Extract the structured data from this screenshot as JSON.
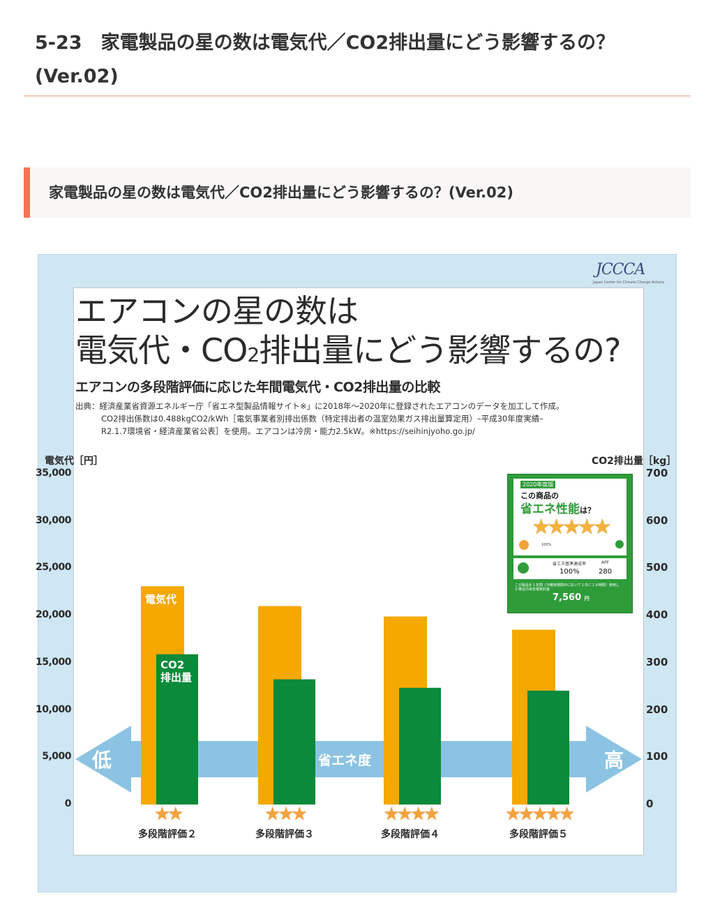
{
  "page": {
    "title_line1": "5-23　家電製品の星の数は電気代／CO2排出量にどう影響するの？",
    "title_line2": "(Ver.02)",
    "section_heading": "家電製品の星の数は電気代／CO2排出量にどう影響するの？(Ver.02)"
  },
  "logo": {
    "text": "JCCCA",
    "sub": "Japan Center for Climate Change Actions"
  },
  "infographic": {
    "title_line1": "エアコンの星の数は",
    "title_line2_a": "電気代・CO",
    "title_line2_sub": "2",
    "title_line2_b": "排出量にどう影響するの?",
    "subtitle": "エアコンの多段階評価に応じた年間電気代・CO2排出量の比較",
    "source_line1": "出典：経済産業省資源エネルギー庁「省エネ型製品情報サイト※」に2018年〜2020年に登録されたエアコンのデータを加工して作成。",
    "source_line2": "CO2排出係数は0.488kgCO2/kWh［電気事業者別排出係数（特定排出者の温室効果ガス排出量算定用）–平成30年度実績–",
    "source_line3": "R2.1.7環境省・経済産業省公表］を使用。エアコンは冷房・能力2.5kW。※https://seihinjyoho.go.jp/"
  },
  "chart_data": {
    "type": "bar",
    "categories": [
      "多段階評価２",
      "多段階評価３",
      "多段階評価４",
      "多段階評価５"
    ],
    "stars": [
      "★★",
      "★★★",
      "★★★★",
      "★★★★★"
    ],
    "star_counts": [
      2,
      3,
      4,
      5
    ],
    "series": [
      {
        "name": "電気代",
        "axis": "left",
        "color": "#f5a800",
        "values": [
          23100,
          21000,
          19900,
          18500
        ]
      },
      {
        "name": "CO2排出量",
        "axis": "right",
        "color": "#0a8a3a",
        "values": [
          318,
          265,
          247,
          241
        ]
      }
    ],
    "series_labels": {
      "cost_label": "電気代",
      "co2_label_line1": "CO2",
      "co2_label_line2": "排出量"
    },
    "ylabel_left": "電気代［円］",
    "ylabel_right": "CO2排出量［kg］",
    "ylim_left": [
      0,
      35000
    ],
    "ylim_right": [
      0,
      700
    ],
    "yticks_left": [
      "35,000",
      "30,000",
      "25,000",
      "20,000",
      "15,000",
      "10,000",
      "5,000",
      "0"
    ],
    "yticks_right": [
      "700",
      "600",
      "500",
      "400",
      "300",
      "200",
      "100",
      "0"
    ],
    "arrow": {
      "center": "省エネ度",
      "left": "低",
      "right": "高"
    },
    "grid": false,
    "legend": "labels on bars"
  },
  "energy_label": {
    "year": "2020年度版",
    "line1": "この商品の",
    "line2": "省エネ性能",
    "line2_tail": "は？",
    "stars": "★★★★★",
    "pct_small": "100%",
    "metric1_name": "省エネ基準達成率",
    "metric1_value": "100%",
    "metric2_name": "APF",
    "metric2_value": "280",
    "cost_note": "この製品を１年間（冷暖房期間中において１日に１８時間）使用した場合の目安電気料金",
    "cost": "7,560",
    "cost_unit": "円"
  },
  "colors": {
    "accent": "#f07653",
    "figure_bg": "#cfe6f3",
    "cost_bar": "#f5a800",
    "co2_bar": "#0a8a3a",
    "arrow": "#8cc3e2",
    "label_green": "#2f9c3a"
  }
}
